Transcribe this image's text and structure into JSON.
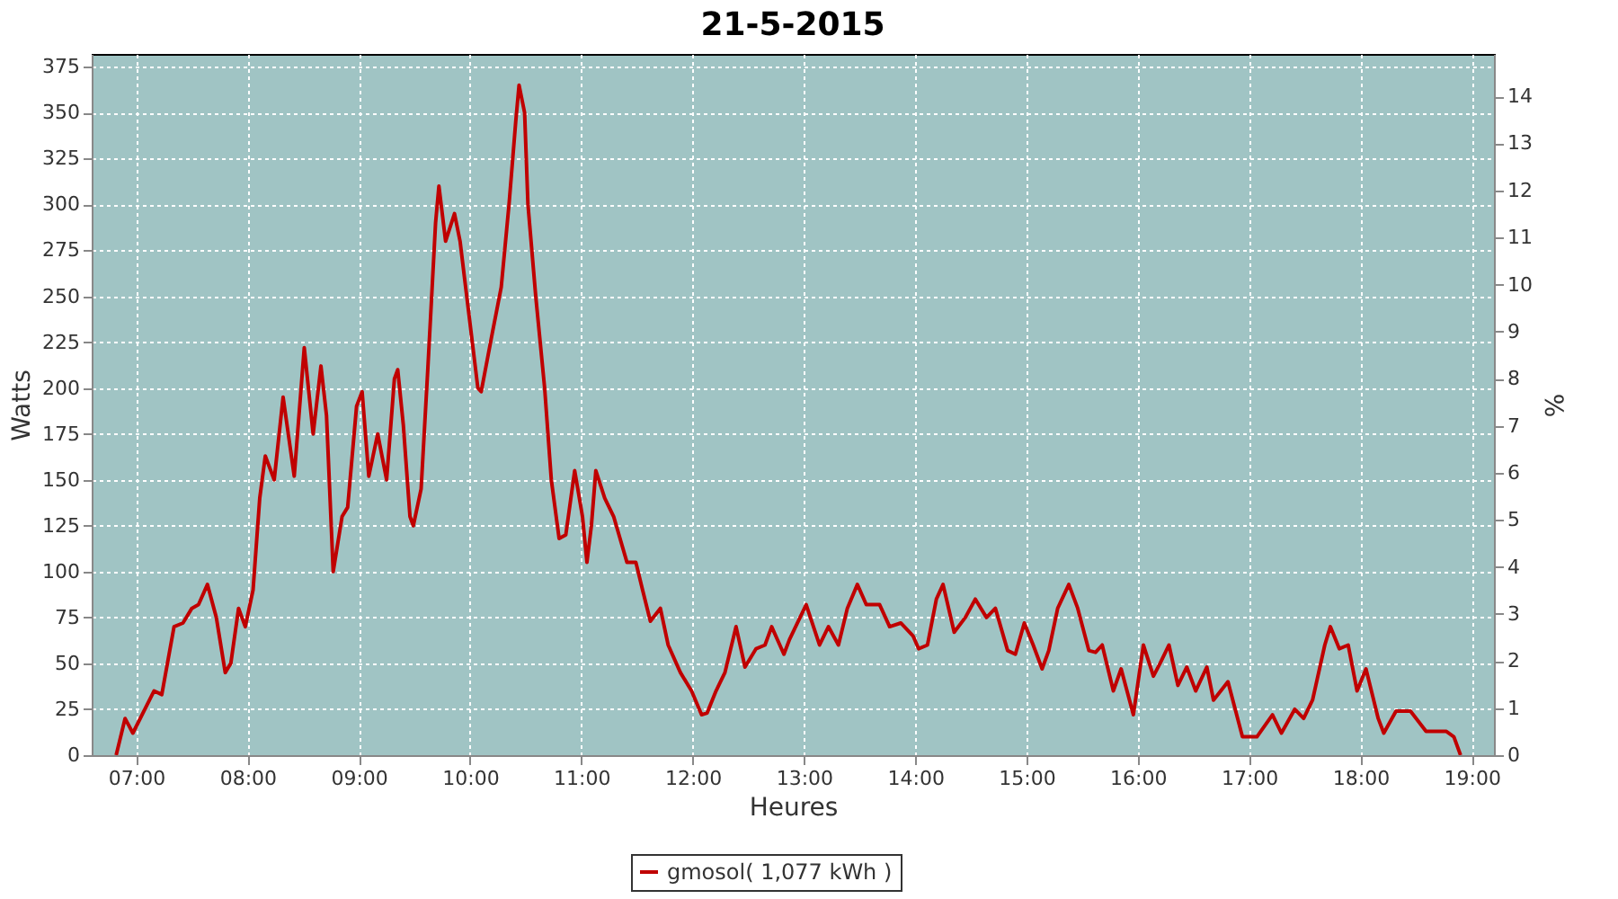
{
  "chart_data": {
    "type": "line",
    "title": "21-5-2015",
    "xlabel": "Heures",
    "ylabel": "Watts",
    "y2label": "%",
    "xlim": [
      6.6,
      19.2
    ],
    "xticks": [
      {
        "value": 7,
        "label": "07:00"
      },
      {
        "value": 8,
        "label": "08:00"
      },
      {
        "value": 9,
        "label": "09:00"
      },
      {
        "value": 10,
        "label": "10:00"
      },
      {
        "value": 11,
        "label": "11:00"
      },
      {
        "value": 12,
        "label": "12:00"
      },
      {
        "value": 13,
        "label": "13:00"
      },
      {
        "value": 14,
        "label": "14:00"
      },
      {
        "value": 15,
        "label": "15:00"
      },
      {
        "value": 16,
        "label": "16:00"
      },
      {
        "value": 17,
        "label": "17:00"
      },
      {
        "value": 18,
        "label": "18:00"
      },
      {
        "value": 19,
        "label": "19:00"
      }
    ],
    "ylim": [
      0,
      382
    ],
    "yticks": [
      0,
      25,
      50,
      75,
      100,
      125,
      150,
      175,
      200,
      225,
      250,
      275,
      300,
      325,
      350,
      375
    ],
    "y2lim": [
      0,
      14.9
    ],
    "y2ticks": [
      0,
      1,
      2,
      3,
      4,
      5,
      6,
      7,
      8,
      9,
      10,
      11,
      12,
      13,
      14
    ],
    "grid": true,
    "legend": "bottom",
    "marker": "none",
    "line_style": "solid",
    "x": [
      6.82,
      6.9,
      6.97,
      7.16,
      7.23,
      7.34,
      7.42,
      7.5,
      7.56,
      7.64,
      7.72,
      7.8,
      7.85,
      7.92,
      7.98,
      8.05,
      8.11,
      8.16,
      8.24,
      8.32,
      8.42,
      8.51,
      8.59,
      8.66,
      8.71,
      8.77,
      8.85,
      8.9,
      8.98,
      9.03,
      9.09,
      9.17,
      9.25,
      9.32,
      9.35,
      9.4,
      9.46,
      9.49,
      9.56,
      9.62,
      9.69,
      9.72,
      9.78,
      9.86,
      9.91,
      9.99,
      10.07,
      10.1,
      10.2,
      10.28,
      10.35,
      10.41,
      10.44,
      10.49,
      10.52,
      10.59,
      10.67,
      10.73,
      10.8,
      10.86,
      10.94,
      11.01,
      11.05,
      11.09,
      11.13,
      11.21,
      11.29,
      11.41,
      11.49,
      11.55,
      11.62,
      11.71,
      11.78,
      11.89,
      11.99,
      12.08,
      12.13,
      12.21,
      12.29,
      12.39,
      12.47,
      12.57,
      12.65,
      12.71,
      12.82,
      12.87,
      13.02,
      13.14,
      13.22,
      13.31,
      13.39,
      13.48,
      13.56,
      13.68,
      13.77,
      13.87,
      13.98,
      14.03,
      14.11,
      14.19,
      14.25,
      14.35,
      14.45,
      14.54,
      14.64,
      14.72,
      14.83,
      14.9,
      14.98,
      15.06,
      15.14,
      15.2,
      15.28,
      15.38,
      15.46,
      15.56,
      15.62,
      15.68,
      15.78,
      15.85,
      15.96,
      16.05,
      16.14,
      16.2,
      16.28,
      16.36,
      16.44,
      16.52,
      16.62,
      16.68,
      16.81,
      16.94,
      17.07,
      17.21,
      17.29,
      17.41,
      17.49,
      17.57,
      17.68,
      17.73,
      17.81,
      17.89,
      17.97,
      18.05,
      18.16,
      18.21,
      18.32,
      18.45,
      18.59,
      18.77,
      18.84,
      18.9
    ],
    "series": [
      {
        "name": "gmosol( 1,077 kWh )",
        "color": "#c00000",
        "values": [
          0,
          20,
          12,
          35,
          33,
          70,
          72,
          80,
          82,
          93,
          75,
          45,
          50,
          80,
          70,
          90,
          140,
          163,
          150,
          195,
          152,
          222,
          175,
          212,
          185,
          100,
          130,
          135,
          190,
          198,
          152,
          175,
          150,
          205,
          210,
          180,
          130,
          125,
          145,
          210,
          290,
          310,
          280,
          295,
          280,
          240,
          200,
          198,
          230,
          255,
          300,
          345,
          365,
          350,
          300,
          250,
          200,
          150,
          118,
          120,
          155,
          130,
          105,
          125,
          155,
          140,
          130,
          105,
          105,
          90,
          73,
          80,
          60,
          45,
          35,
          22,
          23,
          35,
          45,
          70,
          48,
          58,
          60,
          70,
          55,
          63,
          82,
          60,
          70,
          60,
          80,
          93,
          82,
          82,
          70,
          72,
          65,
          58,
          60,
          85,
          93,
          67,
          75,
          85,
          75,
          80,
          57,
          55,
          72,
          60,
          47,
          57,
          80,
          93,
          80,
          57,
          56,
          60,
          35,
          47,
          22,
          60,
          43,
          50,
          60,
          38,
          48,
          35,
          48,
          30,
          40,
          10,
          10,
          22,
          12,
          25,
          20,
          30,
          60,
          70,
          58,
          60,
          35,
          47,
          20,
          12,
          24,
          24,
          13,
          13,
          10,
          0
        ]
      }
    ]
  }
}
